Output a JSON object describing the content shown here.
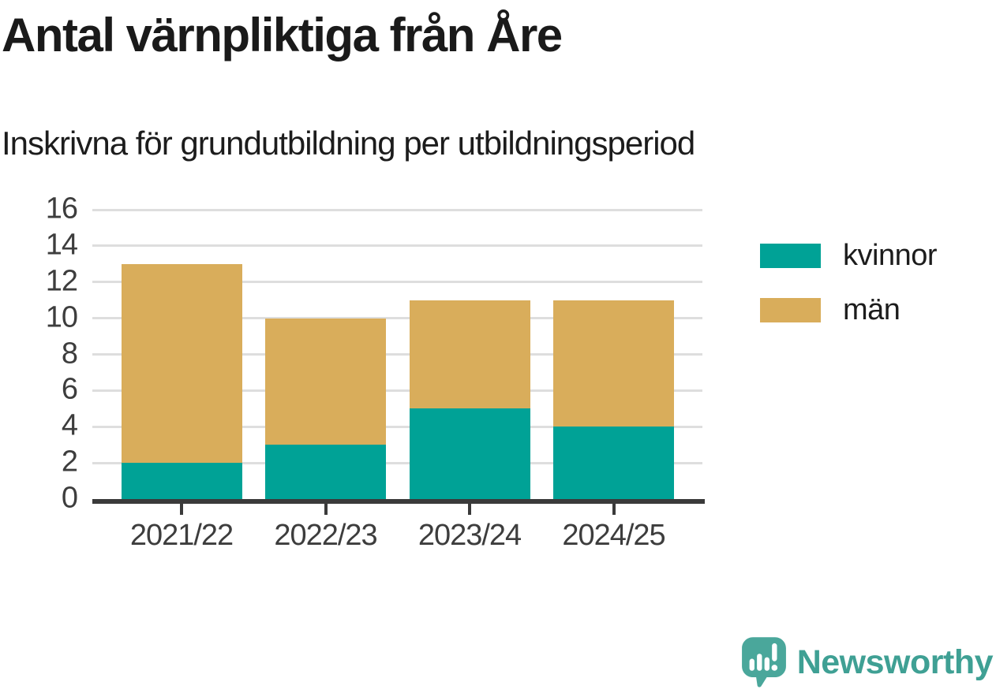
{
  "header": {
    "title": "Antal värnpliktiga från Åre",
    "subtitle": "Inskrivna för grundutbildning per utbildningsperiod"
  },
  "chart_data": {
    "type": "bar",
    "stacked": true,
    "title": "Antal värnpliktiga från Åre",
    "subtitle": "Inskrivna för grundutbildning per utbildningsperiod",
    "categories": [
      "2021/22",
      "2022/23",
      "2023/24",
      "2024/25"
    ],
    "series": [
      {
        "name": "kvinnor",
        "color": "#00a296",
        "values": [
          2,
          3,
          5,
          4
        ]
      },
      {
        "name": "män",
        "color": "#d9ad5b",
        "values": [
          11,
          7,
          6,
          7
        ]
      }
    ],
    "stack_totals": [
      13,
      10,
      11,
      11
    ],
    "xlabel": "",
    "ylabel": "",
    "ylim": [
      0,
      16
    ],
    "yticks": [
      0,
      2,
      4,
      6,
      8,
      10,
      12,
      14,
      16
    ],
    "grid": "horizontal",
    "legend_position": "right"
  },
  "footer": {
    "brand": "Newsworthy"
  },
  "colors": {
    "kvinnor": "#00a296",
    "man": "#d9ad5b",
    "axis": "#3a3a3a",
    "grid": "#dedede",
    "tick_text": "#3d3d3d",
    "title_text": "#1a1a1a",
    "brand_teal": "#3fa094"
  }
}
